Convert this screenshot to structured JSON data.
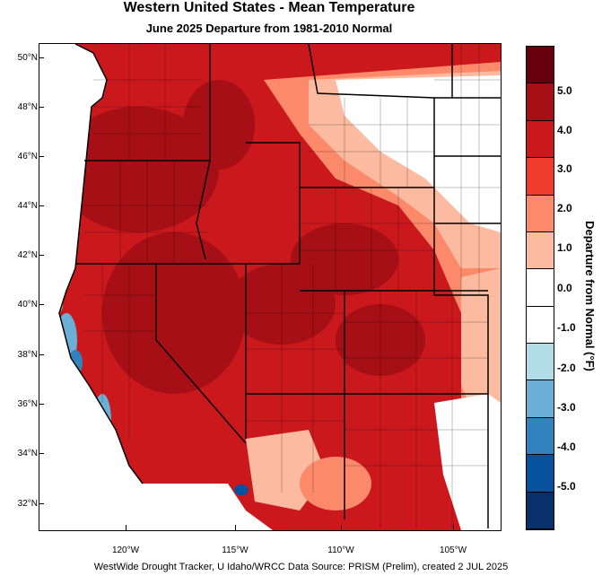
{
  "title": "Western United States - Mean Temperature",
  "subtitle": "June 2025  Departure from 1981-2010 Normal",
  "lat_labels": [
    "50°N",
    "48°N",
    "46°N",
    "44°N",
    "42°N",
    "40°N",
    "38°N",
    "36°N",
    "34°N",
    "32°N"
  ],
  "lon_labels": [
    "120°W",
    "115°W",
    "110°W",
    "105°W"
  ],
  "legend": {
    "title": "Departure from Normal (°F)",
    "labels": [
      "5.0",
      "4.0",
      "3.0",
      "2.0",
      "1.0",
      "0.0",
      "-1.0",
      "-2.0",
      "-3.0",
      "-4.0",
      "-5.0"
    ],
    "colors": [
      "#67000d",
      "#a50f15",
      "#cb181d",
      "#ef3b2c",
      "#fc8a6a",
      "#fcbba1",
      "#ffffff",
      "#ffffff",
      "#b3dde8",
      "#6baed6",
      "#3182bd",
      "#08519c",
      "#08306b"
    ]
  },
  "footer": "WestWide Drought Tracker, U Idaho/WRCC Data Source: PRISM (Prelim), created  2 JUL 2025"
}
